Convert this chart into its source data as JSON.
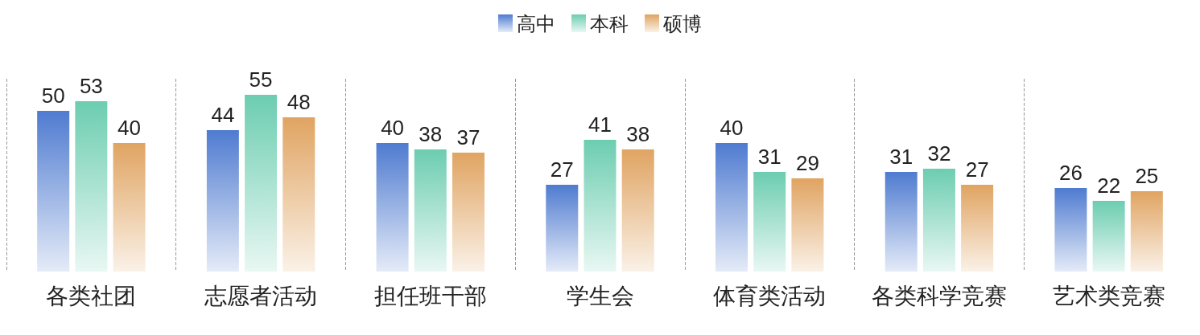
{
  "chart_data": {
    "type": "bar",
    "categories": [
      "各类社团",
      "志愿者活动",
      "担任班干部",
      "学生会",
      "体育类活动",
      "各类科学竞赛",
      "艺术类竞赛"
    ],
    "series": [
      {
        "name": "高中",
        "color": "#4f7bd0",
        "values": [
          50,
          44,
          40,
          27,
          40,
          31,
          26
        ]
      },
      {
        "name": "本科",
        "color": "#6ccdb0",
        "values": [
          53,
          55,
          38,
          41,
          31,
          32,
          22
        ]
      },
      {
        "name": "硕博",
        "color": "#e0a462",
        "values": [
          40,
          48,
          37,
          38,
          29,
          27,
          25
        ]
      }
    ],
    "data_labels": true,
    "grid": "x",
    "legend": "top"
  }
}
